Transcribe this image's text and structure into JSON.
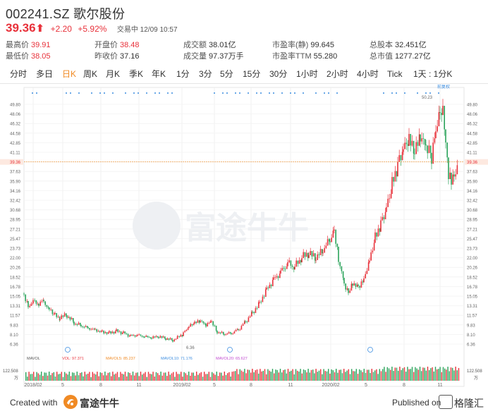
{
  "stock": {
    "title": "002241.SZ 歌尔股份",
    "price": "39.36",
    "change": "+2.20",
    "change_pct": "+5.92%",
    "status": "交易中 12/09 10:57"
  },
  "stats": [
    {
      "label": "最高价",
      "value": "39.91",
      "color": "red"
    },
    {
      "label": "开盘价",
      "value": "38.48",
      "color": "red"
    },
    {
      "label": "成交额",
      "value": "38.01亿",
      "color": "dark"
    },
    {
      "label": "市盈率(静)",
      "value": "99.645",
      "color": "dark"
    },
    {
      "label": "总股本",
      "value": "32.451亿",
      "color": "dark"
    },
    {
      "label": "最低价",
      "value": "38.05",
      "color": "red"
    },
    {
      "label": "昨收价",
      "value": "37.16",
      "color": "dark"
    },
    {
      "label": "成交量",
      "value": "97.37万手",
      "color": "dark"
    },
    {
      "label": "市盈率TTM",
      "value": "55.280",
      "color": "dark"
    },
    {
      "label": "总市值",
      "value": "1277.27亿",
      "color": "dark"
    }
  ],
  "tabs": [
    "分时",
    "多日",
    "日K",
    "周K",
    "月K",
    "季K",
    "年K",
    "1分",
    "3分",
    "5分",
    "15分",
    "30分",
    "1小时",
    "2小时",
    "4小时",
    "Tick",
    "1天 : 1分K"
  ],
  "active_tab": "日K",
  "chart": {
    "fq_label": "前复权",
    "watermark": "富途牛牛",
    "current_price_label": "39.36",
    "high_marker": "50.23",
    "low_marker": "6.36",
    "y_ticks": [
      "49.80",
      "48.06",
      "46.32",
      "44.58",
      "42.85",
      "41.11",
      "39.36",
      "37.63",
      "35.90",
      "34.16",
      "32.42",
      "30.68",
      "28.95",
      "27.21",
      "25.47",
      "23.73",
      "22.00",
      "20.26",
      "18.52",
      "16.78",
      "15.05",
      "13.31",
      "11.57",
      "9.83",
      "8.10",
      "6.36"
    ],
    "x_ticks": [
      "2018/02",
      "5",
      "8",
      "11",
      "2019/02",
      "5",
      "8",
      "11",
      "2020/02",
      "5",
      "8",
      "11"
    ],
    "mavol": {
      "title": "MAVOL",
      "vol": "VOL: 97.371",
      "mavol5": "MAVOL5: 85.237",
      "mavol10": "MAVOL10: 71.176",
      "mavol20": "MAVOL20: 65.627",
      "axis_max": "122.508",
      "unit": "万"
    },
    "colors": {
      "up": "#e8313a",
      "down": "#2aa35a",
      "ma_red": "#e8313a",
      "accent": "#f08a24",
      "blue": "#3b8de0"
    }
  },
  "footer": {
    "created_with": "Created with",
    "brand": "富途牛牛",
    "published": "Published on",
    "wm_name": "格隆汇"
  }
}
